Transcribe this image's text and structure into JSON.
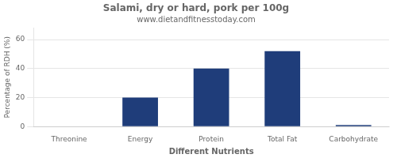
{
  "chart_data": {
    "type": "bar",
    "title": "Salami, dry or hard, pork per 100g",
    "subtitle": "www.dietandfitnesstoday.com",
    "xlabel": "Different Nutrients",
    "ylabel": "Percentage of RDH (%)",
    "categories": [
      "Threonine",
      "Energy",
      "Protein",
      "Total Fat",
      "Carbohydrate"
    ],
    "values": [
      0.3,
      20,
      40,
      52,
      1
    ],
    "color": "#1f3d7a",
    "ylim": [
      0,
      68
    ],
    "yticks": [
      0,
      20,
      40,
      60
    ],
    "grid": true
  }
}
